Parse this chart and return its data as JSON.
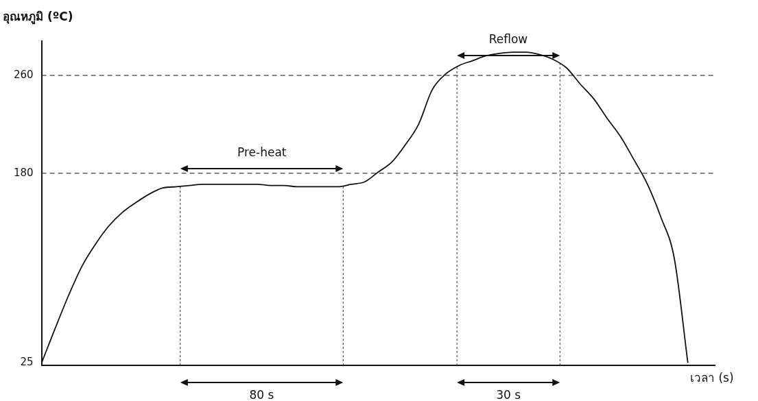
{
  "chart_data": {
    "type": "line",
    "xlabel": "เวลา (s)",
    "ylabel": "อุณหภูมิ (ºC)",
    "categories": [
      null,
      null,
      null,
      null,
      null,
      null,
      null,
      null,
      null,
      null,
      null,
      null,
      null,
      null,
      null,
      null,
      null,
      null,
      null,
      null,
      null,
      null,
      null,
      null,
      null,
      null,
      null,
      null,
      null,
      null,
      null,
      null,
      null,
      null,
      null,
      null,
      null,
      null,
      null,
      null,
      null,
      null,
      null,
      null,
      null,
      null,
      null,
      null,
      null,
      null,
      null
    ],
    "series": [
      {
        "color": "#111111",
        "values": [
          25,
          53,
          80,
          104,
          122,
          137,
          148,
          156,
          163,
          168,
          169,
          170,
          171,
          171,
          171,
          171,
          171,
          170,
          170,
          169,
          169,
          169,
          169,
          171,
          173,
          181,
          189,
          203,
          220,
          248,
          261,
          268,
          272,
          276,
          278,
          279,
          279,
          277,
          273,
          266,
          253,
          241,
          225,
          210,
          191,
          171,
          144,
          110,
          25,
          null,
          null
        ]
      }
    ],
    "ylim": [
      23,
      288
    ],
    "yticks": [
      25,
      180,
      260
    ],
    "tick_labels": "y",
    "grid": false,
    "legend": false,
    "marker": "none",
    "line_style": "solid",
    "ref_lines": [
      {
        "axis": "y",
        "value": 180,
        "line_style": "dashed",
        "color": "#111111"
      },
      {
        "axis": "y",
        "value": 260,
        "line_style": "dashed",
        "color": "#111111"
      }
    ],
    "annotations": [
      "Pre-heat",
      "Reflow",
      "80 s",
      "30 s"
    ]
  }
}
